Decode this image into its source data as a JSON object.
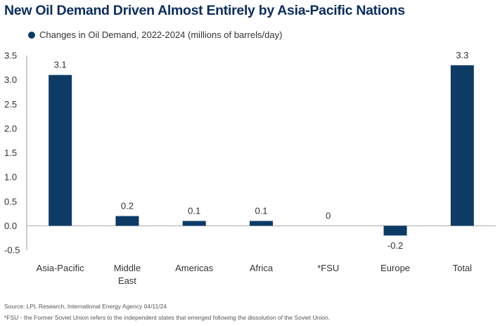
{
  "title": "New Oil Demand Driven Almost Entirely by Asia-Pacific Nations",
  "chart_data": {
    "type": "bar",
    "series_name": "Changes in Oil Demand, 2022-2024 (millions of barrels/day)",
    "categories": [
      [
        "Asia-Pacific"
      ],
      [
        "Middle",
        "East"
      ],
      [
        "Americas"
      ],
      [
        "Africa"
      ],
      [
        "*FSU"
      ],
      [
        "Europe"
      ],
      [
        "Total"
      ]
    ],
    "values": [
      3.1,
      0.2,
      0.1,
      0.1,
      0,
      -0.2,
      3.3
    ],
    "value_labels": [
      "3.1",
      "0.2",
      "0.1",
      "0.1",
      "0",
      "-0.2",
      "3.3"
    ],
    "ylim": [
      -0.5,
      3.5
    ],
    "yticks": [
      3.5,
      3.0,
      2.5,
      2.0,
      1.5,
      1.0,
      0.5,
      0.0,
      -0.5
    ],
    "ytick_labels": [
      "3.5",
      "3.0",
      "2.5",
      "2.0",
      "1.5",
      "1.0",
      "0.5",
      "0.0",
      "-0.5"
    ],
    "grid": false,
    "legend_position": "top-left",
    "bar_color": "#0d3b66"
  },
  "source": "Source: LPL Research, International Energy Agency 04/11/24",
  "footnote": "*FSU - the Former Soviet Union refers to the independent states that emerged following the dissolution of the Soviet Union."
}
